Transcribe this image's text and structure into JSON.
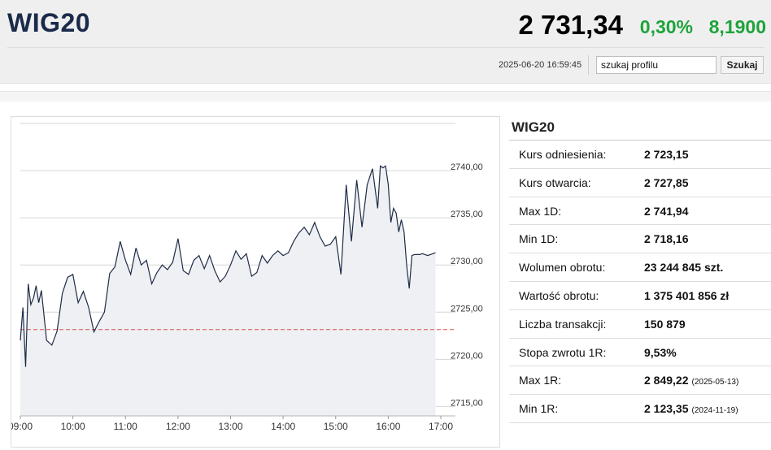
{
  "header": {
    "ticker": "WIG20",
    "price": "2 731,34",
    "change_pct": "0,30%",
    "change_abs": "8,1900",
    "timestamp": "2025-06-20 16:59:45",
    "search_value": "szukaj profilu",
    "search_button": "Szukaj",
    "positive_color": "#1fa33c"
  },
  "stats": {
    "title": "WIG20",
    "rows": [
      {
        "label": "Kurs odniesienia:",
        "value": "2 723,15",
        "date": ""
      },
      {
        "label": "Kurs otwarcia:",
        "value": "2 727,85",
        "date": ""
      },
      {
        "label": "Max 1D:",
        "value": "2 741,94",
        "date": ""
      },
      {
        "label": "Min 1D:",
        "value": "2 718,16",
        "date": ""
      },
      {
        "label": "Wolumen obrotu:",
        "value": "23 244 845 szt.",
        "date": ""
      },
      {
        "label": "Wartość obrotu:",
        "value": "1 375 401 856 zł",
        "date": ""
      },
      {
        "label": "Liczba transakcji:",
        "value": "150 879",
        "date": ""
      },
      {
        "label": "Stopa zwrotu 1R:",
        "value": "9,53%",
        "date": ""
      },
      {
        "label": "Max 1R:",
        "value": "2 849,22",
        "date": "(2025-05-13)"
      },
      {
        "label": "Min 1R:",
        "value": "2 123,35",
        "date": "(2024-11-19)"
      }
    ]
  },
  "chart_data": {
    "type": "area",
    "x_ticks": [
      "09:00",
      "10:00",
      "11:00",
      "12:00",
      "13:00",
      "14:00",
      "15:00",
      "16:00",
      "17:00"
    ],
    "y_ticks": [
      "2715,00",
      "2720,00",
      "2725,00",
      "2730,00",
      "2735,00",
      "2740,00"
    ],
    "ylim": [
      2714,
      2745
    ],
    "xlim_minutes": [
      540,
      1020
    ],
    "reference_line": 2723.15,
    "line_color": "#1e2b46",
    "fill_color": "#eef0f3",
    "reference_color": "#d9534f",
    "series": [
      {
        "x": [
          540,
          543,
          546,
          549,
          552,
          555,
          558,
          561,
          564,
          570,
          576,
          582,
          588,
          594,
          600,
          606,
          612,
          618,
          624,
          630,
          636,
          642,
          648,
          654,
          660,
          666,
          672,
          678,
          684,
          690,
          696,
          702,
          708,
          714,
          720,
          726,
          732,
          738,
          744,
          750,
          756,
          762,
          768,
          774,
          780,
          786,
          792,
          798,
          804,
          810,
          816,
          822,
          828,
          834,
          840,
          846,
          852,
          858,
          864,
          870,
          876,
          882,
          888,
          894,
          900,
          906,
          912,
          918,
          924,
          930,
          936,
          942,
          948,
          951,
          954,
          957,
          960,
          963,
          966,
          969,
          972,
          975,
          978,
          981,
          984,
          987,
          990,
          993,
          996,
          999,
          1002,
          1005,
          1008,
          1011,
          1014
        ],
        "y": [
          2722.0,
          2725.5,
          2719.2,
          2728.0,
          2725.8,
          2726.5,
          2727.8,
          2726.0,
          2727.3,
          2722.0,
          2721.5,
          2723.0,
          2727.0,
          2728.7,
          2729.0,
          2726.0,
          2727.2,
          2725.5,
          2722.9,
          2724.0,
          2725.0,
          2729.1,
          2729.8,
          2732.5,
          2730.5,
          2729.0,
          2731.8,
          2730.0,
          2730.5,
          2728.0,
          2729.2,
          2730.0,
          2729.5,
          2730.3,
          2732.8,
          2729.4,
          2729.0,
          2730.5,
          2731.0,
          2729.6,
          2731.0,
          2729.4,
          2728.2,
          2728.8,
          2730.0,
          2731.5,
          2730.6,
          2731.2,
          2728.8,
          2729.2,
          2731.0,
          2730.2,
          2731.0,
          2731.5,
          2731.0,
          2731.3,
          2732.5,
          2733.4,
          2734.0,
          2733.2,
          2734.5,
          2733.0,
          2732.0,
          2732.2,
          2733.0,
          2729.0,
          2738.5,
          2732.5,
          2739.0,
          2734.0,
          2738.5,
          2740.2,
          2736.0,
          2740.5,
          2740.3,
          2740.5,
          2738.5,
          2734.5,
          2736.0,
          2735.5,
          2733.5,
          2734.8,
          2733.5,
          2730.0,
          2727.5,
          2731.0,
          2731.1,
          2731.1,
          2731.1,
          2731.2,
          2731.1,
          2731.0,
          2731.1,
          2731.2,
          2731.3
        ]
      }
    ]
  }
}
